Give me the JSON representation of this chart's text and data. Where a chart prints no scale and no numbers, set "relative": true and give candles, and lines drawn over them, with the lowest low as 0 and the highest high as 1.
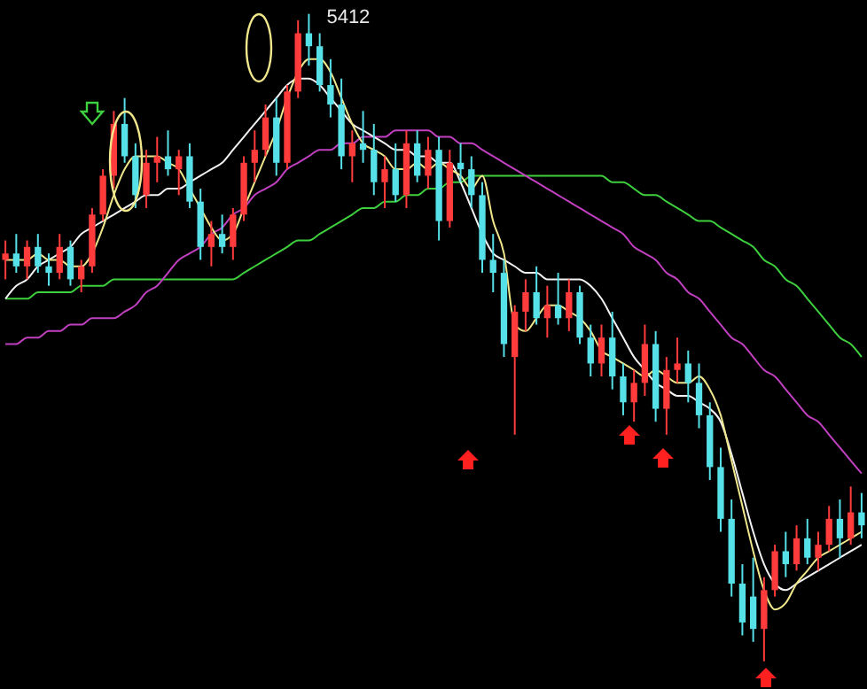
{
  "chart_data": {
    "type": "candlestick",
    "relative": true,
    "categories": [
      null,
      null,
      null,
      null,
      null,
      null,
      null,
      null,
      null,
      null,
      null,
      null,
      null,
      null,
      null,
      null,
      null,
      null,
      null,
      null,
      null,
      null,
      null,
      null,
      null,
      null,
      null,
      null,
      null,
      null,
      null,
      null,
      null,
      null,
      null,
      null,
      null,
      null,
      null,
      null,
      null,
      null,
      null,
      null,
      null,
      null,
      null,
      null,
      null,
      null,
      null,
      null,
      null,
      null,
      null,
      null,
      null,
      null,
      null,
      null,
      null,
      null,
      null,
      null,
      null,
      null,
      null,
      null,
      null,
      null,
      null,
      null,
      null,
      null,
      null,
      null,
      null,
      null,
      null,
      null
    ],
    "ohlc": [
      [
        0.62,
        0.65,
        0.59,
        0.63
      ],
      [
        0.63,
        0.66,
        0.6,
        0.61
      ],
      [
        0.61,
        0.65,
        0.59,
        0.64
      ],
      [
        0.64,
        0.66,
        0.6,
        0.61
      ],
      [
        0.61,
        0.63,
        0.58,
        0.6
      ],
      [
        0.6,
        0.66,
        0.59,
        0.64
      ],
      [
        0.64,
        0.65,
        0.58,
        0.59
      ],
      [
        0.59,
        0.62,
        0.57,
        0.61
      ],
      [
        0.61,
        0.7,
        0.6,
        0.69
      ],
      [
        0.69,
        0.76,
        0.68,
        0.75
      ],
      [
        0.75,
        0.85,
        0.73,
        0.83
      ],
      [
        0.83,
        0.87,
        0.77,
        0.78
      ],
      [
        0.78,
        0.8,
        0.7,
        0.72
      ],
      [
        0.72,
        0.79,
        0.7,
        0.77
      ],
      [
        0.77,
        0.81,
        0.74,
        0.78
      ],
      [
        0.78,
        0.82,
        0.75,
        0.76
      ],
      [
        0.76,
        0.79,
        0.72,
        0.78
      ],
      [
        0.78,
        0.8,
        0.7,
        0.71
      ],
      [
        0.71,
        0.73,
        0.62,
        0.64
      ],
      [
        0.64,
        0.68,
        0.61,
        0.66
      ],
      [
        0.66,
        0.69,
        0.63,
        0.64
      ],
      [
        0.64,
        0.7,
        0.62,
        0.69
      ],
      [
        0.69,
        0.78,
        0.68,
        0.77
      ],
      [
        0.77,
        0.82,
        0.74,
        0.79
      ],
      [
        0.79,
        0.86,
        0.78,
        0.84
      ],
      [
        0.84,
        0.87,
        0.75,
        0.77
      ],
      [
        0.77,
        0.89,
        0.76,
        0.88
      ],
      [
        0.88,
        0.99,
        0.87,
        0.97
      ],
      [
        0.97,
        1,
        0.92,
        0.95
      ],
      [
        0.95,
        0.97,
        0.88,
        0.89
      ],
      [
        0.89,
        0.93,
        0.84,
        0.86
      ],
      [
        0.86,
        0.9,
        0.76,
        0.78
      ],
      [
        0.78,
        0.82,
        0.74,
        0.8
      ],
      [
        0.8,
        0.85,
        0.77,
        0.79
      ],
      [
        0.79,
        0.83,
        0.72,
        0.74
      ],
      [
        0.74,
        0.78,
        0.7,
        0.76
      ],
      [
        0.76,
        0.8,
        0.71,
        0.72
      ],
      [
        0.72,
        0.82,
        0.7,
        0.8
      ],
      [
        0.8,
        0.82,
        0.74,
        0.75
      ],
      [
        0.75,
        0.81,
        0.73,
        0.79
      ],
      [
        0.79,
        0.81,
        0.65,
        0.68
      ],
      [
        0.68,
        0.79,
        0.67,
        0.77
      ],
      [
        0.77,
        0.8,
        0.74,
        0.76
      ],
      [
        0.76,
        0.78,
        0.7,
        0.72
      ],
      [
        0.72,
        0.74,
        0.6,
        0.62
      ],
      [
        0.62,
        0.66,
        0.57,
        0.6
      ],
      [
        0.6,
        0.62,
        0.47,
        0.49
      ],
      [
        0.47,
        0.55,
        0.35,
        0.54
      ],
      [
        0.54,
        0.59,
        0.51,
        0.57
      ],
      [
        0.57,
        0.61,
        0.52,
        0.53
      ],
      [
        0.53,
        0.58,
        0.5,
        0.55
      ],
      [
        0.55,
        0.6,
        0.52,
        0.53
      ],
      [
        0.53,
        0.59,
        0.51,
        0.57
      ],
      [
        0.57,
        0.58,
        0.49,
        0.5
      ],
      [
        0.5,
        0.52,
        0.44,
        0.46
      ],
      [
        0.46,
        0.52,
        0.44,
        0.5
      ],
      [
        0.5,
        0.54,
        0.42,
        0.44
      ],
      [
        0.44,
        0.46,
        0.38,
        0.4
      ],
      [
        0.4,
        0.45,
        0.37,
        0.43
      ],
      [
        0.43,
        0.52,
        0.41,
        0.49
      ],
      [
        0.49,
        0.51,
        0.37,
        0.39
      ],
      [
        0.39,
        0.47,
        0.35,
        0.45
      ],
      [
        0.45,
        0.5,
        0.43,
        0.46
      ],
      [
        0.46,
        0.48,
        0.4,
        0.43
      ],
      [
        0.43,
        0.46,
        0.36,
        0.38
      ],
      [
        0.38,
        0.4,
        0.28,
        0.3
      ],
      [
        0.3,
        0.33,
        0.2,
        0.22
      ],
      [
        0.22,
        0.25,
        0.1,
        0.12
      ],
      [
        0.12,
        0.15,
        0.04,
        0.06
      ],
      [
        0.1,
        0.16,
        0.03,
        0.05
      ],
      [
        0.05,
        0.13,
        0,
        0.11
      ],
      [
        0.11,
        0.18,
        0.1,
        0.17
      ],
      [
        0.17,
        0.2,
        0.13,
        0.15
      ],
      [
        0.15,
        0.21,
        0.14,
        0.19
      ],
      [
        0.19,
        0.22,
        0.15,
        0.16
      ],
      [
        0.16,
        0.2,
        0.14,
        0.18
      ],
      [
        0.18,
        0.24,
        0.17,
        0.22
      ],
      [
        0.22,
        0.25,
        0.16,
        0.19
      ],
      [
        0.19,
        0.27,
        0.18,
        0.23
      ],
      [
        0.23,
        0.26,
        0.19,
        0.21
      ]
    ],
    "colors": [
      "#ff3b3b",
      "#56e0e8",
      "#ff3b3b",
      "#56e0e8",
      "#56e0e8",
      "#ff3b3b",
      "#56e0e8",
      "#ff3b3b",
      "#ff3b3b",
      "#ff3b3b",
      "#ff3b3b",
      "#56e0e8",
      "#56e0e8",
      "#ff3b3b",
      "#ff3b3b",
      "#56e0e8",
      "#ff3b3b",
      "#56e0e8",
      "#56e0e8",
      "#ff3b3b",
      "#56e0e8",
      "#ff3b3b",
      "#ff3b3b",
      "#ff3b3b",
      "#ff3b3b",
      "#56e0e8",
      "#ff3b3b",
      "#ff3b3b",
      "#56e0e8",
      "#56e0e8",
      "#56e0e8",
      "#56e0e8",
      "#ff3b3b",
      "#56e0e8",
      "#56e0e8",
      "#ff3b3b",
      "#56e0e8",
      "#ff3b3b",
      "#56e0e8",
      "#ff3b3b",
      "#56e0e8",
      "#ff3b3b",
      "#56e0e8",
      "#56e0e8",
      "#56e0e8",
      "#56e0e8",
      "#56e0e8",
      "#ff3b3b",
      "#ff3b3b",
      "#56e0e8",
      "#ff3b3b",
      "#56e0e8",
      "#ff3b3b",
      "#56e0e8",
      "#56e0e8",
      "#ff3b3b",
      "#56e0e8",
      "#56e0e8",
      "#ff3b3b",
      "#ff3b3b",
      "#56e0e8",
      "#ff3b3b",
      "#ff3b3b",
      "#56e0e8",
      "#56e0e8",
      "#56e0e8",
      "#56e0e8",
      "#56e0e8",
      "#56e0e8",
      "#56e0e8",
      "#ff3b3b",
      "#ff3b3b",
      "#56e0e8",
      "#ff3b3b",
      "#56e0e8",
      "#ff3b3b",
      "#ff3b3b",
      "#56e0e8",
      "#ff3b3b",
      "#56e0e8"
    ],
    "series": [
      {
        "type": "line",
        "color": "#3ecf3e",
        "values": [
          0.56,
          0.56,
          0.56,
          0.57,
          0.57,
          0.57,
          0.57,
          0.58,
          0.58,
          0.58,
          0.59,
          0.59,
          0.59,
          0.59,
          0.59,
          0.59,
          0.59,
          0.59,
          0.59,
          0.59,
          0.59,
          0.59,
          0.6,
          0.61,
          0.62,
          0.63,
          0.64,
          0.65,
          0.65,
          0.66,
          0.67,
          0.68,
          0.69,
          0.7,
          0.7,
          0.71,
          0.71,
          0.72,
          0.72,
          0.73,
          0.73,
          0.74,
          0.74,
          0.75,
          0.75,
          0.75,
          0.75,
          0.75,
          0.75,
          0.75,
          0.75,
          0.75,
          0.75,
          0.75,
          0.75,
          0.75,
          0.74,
          0.74,
          0.73,
          0.72,
          0.72,
          0.71,
          0.7,
          0.69,
          0.68,
          0.68,
          0.67,
          0.66,
          0.65,
          0.64,
          0.62,
          0.61,
          0.59,
          0.58,
          0.56,
          0.54,
          0.52,
          0.5,
          0.49,
          0.47
        ]
      },
      {
        "type": "line",
        "color": "#c040c0",
        "values": [
          0.49,
          0.49,
          0.5,
          0.5,
          0.51,
          0.51,
          0.52,
          0.52,
          0.53,
          0.53,
          0.53,
          0.54,
          0.55,
          0.57,
          0.58,
          0.6,
          0.62,
          0.63,
          0.64,
          0.66,
          0.67,
          0.69,
          0.7,
          0.72,
          0.73,
          0.74,
          0.76,
          0.77,
          0.78,
          0.79,
          0.79,
          0.8,
          0.8,
          0.81,
          0.81,
          0.81,
          0.82,
          0.82,
          0.82,
          0.82,
          0.81,
          0.81,
          0.8,
          0.8,
          0.79,
          0.78,
          0.77,
          0.76,
          0.75,
          0.74,
          0.73,
          0.72,
          0.71,
          0.7,
          0.69,
          0.68,
          0.67,
          0.66,
          0.64,
          0.63,
          0.62,
          0.6,
          0.59,
          0.57,
          0.56,
          0.54,
          0.52,
          0.5,
          0.49,
          0.47,
          0.45,
          0.44,
          0.42,
          0.4,
          0.38,
          0.37,
          0.35,
          0.33,
          0.31,
          0.29
        ]
      },
      {
        "type": "line",
        "color": "#f2f2f2",
        "values": [
          0.56,
          0.58,
          0.59,
          0.61,
          0.62,
          0.63,
          0.64,
          0.66,
          0.67,
          0.68,
          0.69,
          0.7,
          0.71,
          0.72,
          0.72,
          0.73,
          0.73,
          0.74,
          0.75,
          0.76,
          0.77,
          0.79,
          0.81,
          0.83,
          0.85,
          0.87,
          0.89,
          0.9,
          0.9,
          0.89,
          0.87,
          0.85,
          0.83,
          0.82,
          0.81,
          0.8,
          0.79,
          0.79,
          0.78,
          0.78,
          0.77,
          0.77,
          0.74,
          0.7,
          0.66,
          0.63,
          0.62,
          0.61,
          0.6,
          0.6,
          0.59,
          0.59,
          0.59,
          0.59,
          0.58,
          0.56,
          0.53,
          0.5,
          0.47,
          0.45,
          0.43,
          0.42,
          0.41,
          0.41,
          0.4,
          0.39,
          0.37,
          0.32,
          0.26,
          0.2,
          0.15,
          0.12,
          0.11,
          0.12,
          0.13,
          0.14,
          0.15,
          0.16,
          0.17,
          0.18
        ]
      },
      {
        "type": "line",
        "color": "#f0e68c",
        "values": [
          0.62,
          0.62,
          0.62,
          0.63,
          0.62,
          0.62,
          0.61,
          0.61,
          0.63,
          0.67,
          0.72,
          0.76,
          0.78,
          0.78,
          0.78,
          0.77,
          0.76,
          0.73,
          0.7,
          0.67,
          0.65,
          0.66,
          0.7,
          0.74,
          0.78,
          0.82,
          0.87,
          0.91,
          0.93,
          0.93,
          0.91,
          0.87,
          0.83,
          0.8,
          0.79,
          0.78,
          0.76,
          0.76,
          0.77,
          0.76,
          0.77,
          0.76,
          0.75,
          0.73,
          0.75,
          0.68,
          0.63,
          0.52,
          0.51,
          0.53,
          0.55,
          0.55,
          0.54,
          0.53,
          0.51,
          0.48,
          0.47,
          0.46,
          0.45,
          0.44,
          0.45,
          0.44,
          0.43,
          0.43,
          0.44,
          0.42,
          0.38,
          0.31,
          0.24,
          0.17,
          0.11,
          0.08,
          0.09,
          0.12,
          0.14,
          0.16,
          0.17,
          0.18,
          0.19,
          0.2
        ]
      }
    ],
    "annotations": [
      "5412"
    ]
  }
}
